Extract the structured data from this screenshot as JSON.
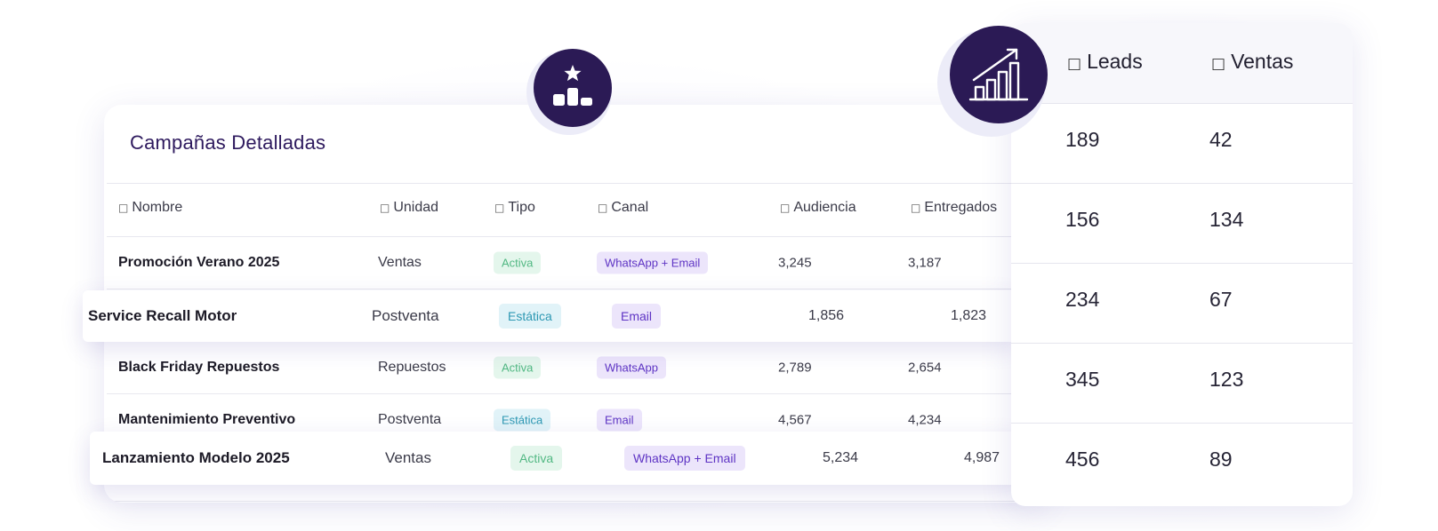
{
  "campaigns_card": {
    "title": "Campañas Detalladas",
    "columns": [
      {
        "icon": "□",
        "label": "Nombre"
      },
      {
        "icon": "□",
        "label": "Unidad"
      },
      {
        "icon": "□",
        "label": "Tipo"
      },
      {
        "icon": "□",
        "label": "Canal"
      },
      {
        "icon": "□",
        "label": "Audiencia"
      },
      {
        "icon": "□",
        "label": "Entregados"
      }
    ],
    "rows": [
      {
        "name": "Promoción Verano 2025",
        "unidad": "Ventas",
        "tipo": "Activa",
        "canal": "WhatsApp + Email",
        "audiencia": "3,245",
        "entregados": "3,187"
      },
      {
        "name": "Service Recall Motor",
        "unidad": "Postventa",
        "tipo": "Estática",
        "canal": "Email",
        "audiencia": "1,856",
        "entregados": "1,823"
      },
      {
        "name": "Black Friday Repuestos",
        "unidad": "Repuestos",
        "tipo": "Activa",
        "canal": "WhatsApp",
        "audiencia": "2,789",
        "entregados": "2,654"
      },
      {
        "name": "Mantenimiento Preventivo",
        "unidad": "Postventa",
        "tipo": "Estática",
        "canal": "Email",
        "audiencia": "4,567",
        "entregados": "4,234"
      },
      {
        "name": "Lanzamiento Modelo 2025",
        "unidad": "Ventas",
        "tipo": "Activa",
        "canal": "WhatsApp + Email",
        "audiencia": "5,234",
        "entregados": "4,987"
      }
    ]
  },
  "results_panel": {
    "columns": [
      {
        "icon": "□",
        "label": "Leads"
      },
      {
        "icon": "□",
        "label": "Ventas"
      }
    ],
    "rows": [
      {
        "leads": "189",
        "ventas": "42"
      },
      {
        "leads": "156",
        "ventas": "134"
      },
      {
        "leads": "234",
        "ventas": "67"
      },
      {
        "leads": "345",
        "ventas": "123"
      },
      {
        "leads": "456",
        "ventas": "89"
      }
    ]
  },
  "icons": {
    "podium": "podium-star-icon",
    "growth": "growth-chart-icon"
  },
  "colors": {
    "brand_dark": "#2b1a55",
    "title": "#2e1a5e",
    "badge_activa_bg": "#e4f6ec",
    "badge_activa_text": "#52b883",
    "badge_estatica_bg": "#e1f3f8",
    "badge_estatica_text": "#2d98b3",
    "badge_canal_bg": "#ece5fb",
    "badge_canal_text": "#5e34c4"
  }
}
